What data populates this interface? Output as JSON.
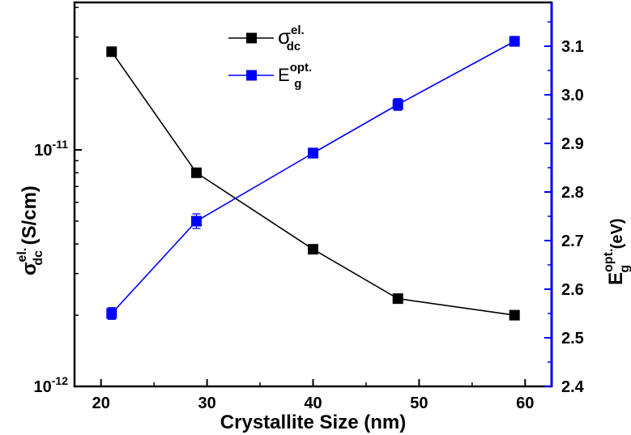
{
  "chart_data": {
    "type": "line",
    "title": "",
    "xlabel": "Crystallite Size (nm)",
    "ylabel_left": {
      "main": "σ",
      "sup": "el.",
      "sub": "dc",
      "unit": " (S/cm)"
    },
    "ylabel_right": {
      "main": "E",
      "sup": "opt.",
      "sub": "g",
      "unit": " (eV)"
    },
    "xlim": [
      17.5,
      62.5
    ],
    "x_ticks": [
      20,
      30,
      40,
      50,
      60
    ],
    "x_tick_labels": [
      "20",
      "30",
      "40",
      "50",
      "60"
    ],
    "y_left_scale": "log",
    "y_left_lim": [
      1e-12,
      4.2e-11
    ],
    "y_left_ticks": [
      1e-12,
      1e-11
    ],
    "y_left_tick_labels": [
      {
        "base": "10",
        "exp": "-12"
      },
      {
        "base": "10",
        "exp": "-11"
      }
    ],
    "y_right_lim": [
      2.4,
      3.19
    ],
    "y_right_ticks": [
      2.4,
      2.5,
      2.6,
      2.7,
      2.8,
      2.9,
      3.0,
      3.1
    ],
    "y_right_tick_labels": [
      "2.4",
      "2.5",
      "2.6",
      "2.7",
      "2.8",
      "2.9",
      "3.0",
      "3.1"
    ],
    "series": [
      {
        "name": "σ_dc^el.",
        "legend": {
          "main": "σ",
          "sup": "el.",
          "sub": "dc"
        },
        "axis": "left",
        "color": "#000000",
        "x": [
          21,
          29,
          40,
          48,
          59
        ],
        "values": [
          2.6e-11,
          8e-12,
          3.8e-12,
          2.35e-12,
          2e-12
        ]
      },
      {
        "name": "E_g^opt.",
        "legend": {
          "main": "E",
          "sup": "opt.",
          "sub": "g"
        },
        "axis": "right",
        "color": "#0000ff",
        "x": [
          21,
          29,
          40,
          48,
          59
        ],
        "values": [
          2.55,
          2.74,
          2.88,
          2.98,
          3.11
        ],
        "errors": [
          0.012,
          0.015,
          0.01,
          0.012,
          0.01
        ]
      }
    ],
    "legend_position": "top-center"
  },
  "colors": {
    "left_axis": "#000000",
    "right_axis": "#0000ff"
  }
}
